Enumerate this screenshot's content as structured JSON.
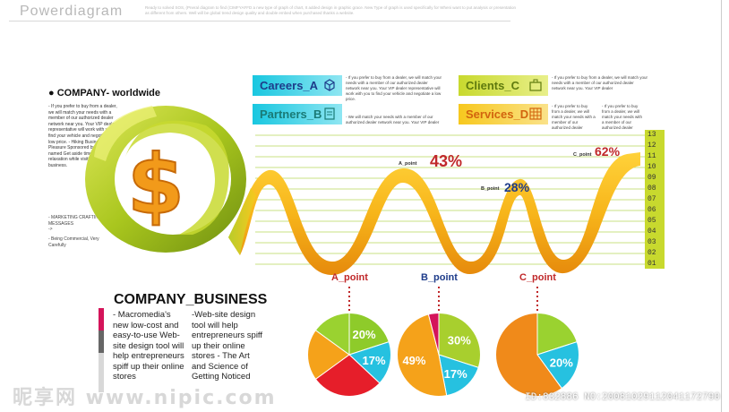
{
  "header": {
    "brand": "Powerdiagram",
    "desc": "Ready to solved SOS, (Pneral diagram to find (CIMFYAFFD a new type of graph of chart, It added design in graphic grace. New Type of graph is used specifically for Wheni want to put analysis or presentation as different from others. Well will be global trend design quality and double embed when purchased thanks a website."
  },
  "company": {
    "title": "COMPANY- worldwide",
    "text": "- If you prefer to buy from a dealer, we will match your needs with a member of our authorized dealer network near you. Your VIP dealer representative will work with you to find your vehicle and negotiate a low price. - Hiking Business With Pleasure Sponsored by Company named Get aside time for fun and relaxation while visiting Tokyo on business.",
    "tagline": "- MARKETING CRAFTING MESSAGES",
    "arrow": "->",
    "footer": "- Being Commercial, Very Carefully"
  },
  "tags": [
    {
      "label": "Careers_A",
      "icon": "cube-icon",
      "color": "#2f92d6",
      "desc": "- If you prefer to buy from a dealer, we will match your needs with a member of our authorized dealer network near you. Your VIP dealer representative will work with you to find your vehicle and negotiate a low price."
    },
    {
      "label": "Partners_B",
      "icon": "document-icon",
      "color": "#1fa6a0",
      "desc": "- We will match your needs with a member of our authorized dealer network near you. Your VIP dealer"
    },
    {
      "label": "Clients_C",
      "icon": "briefcase-icon",
      "color": "#8aa61a",
      "desc": "- If you prefer to buy from a dealer, we will match your needs with a member of our authorized dealer network near you. Your VIP dealer"
    },
    {
      "label": "Services_D",
      "icon": "grid-icon",
      "color": "#e8751a",
      "desc1": "- If you prefer to buy from a dealer, we will match your needs with a member of our authorized dealer",
      "desc2": "- If you prefer to buy from a dealer, we will match your needs with a member of our authorized dealer"
    }
  ],
  "ribbon": {
    "points": [
      {
        "label": "A_point",
        "percent": "43%",
        "color": "#c0282a"
      },
      {
        "label": "B_point",
        "percent": "28%",
        "color": "#1e3c8a"
      },
      {
        "label": "C_point",
        "percent": "62%",
        "color": "#c0282a"
      }
    ],
    "scale": [
      "13",
      "12",
      "11",
      "10",
      "09",
      "08",
      "07",
      "06",
      "05",
      "04",
      "03",
      "02",
      "01"
    ]
  },
  "pies": [
    {
      "label": "A_point",
      "label_color": "#c0282a",
      "slices": [
        {
          "value": 20,
          "color": "#8ecb2a",
          "text": "20%"
        },
        {
          "value": 17,
          "color": "#26c1e0",
          "text": "17%"
        },
        {
          "value": 28,
          "color": "#e61e2a",
          "text": ""
        },
        {
          "value": 20,
          "color": "#f5a21a",
          "text": ""
        },
        {
          "value": 15,
          "color": "#9ad230",
          "text": ""
        }
      ]
    },
    {
      "label": "B_point",
      "label_color": "#1e3c8a",
      "slices": [
        {
          "value": 30,
          "color": "#a8cf2e",
          "text": "30%"
        },
        {
          "value": 17,
          "color": "#26c1e0",
          "text": "17%"
        },
        {
          "value": 49,
          "color": "#f5a21a",
          "text": "49%"
        },
        {
          "value": 4,
          "color": "#d4145a",
          "text": ""
        }
      ]
    },
    {
      "label": "C_point",
      "label_color": "#c0282a",
      "slices": [
        {
          "value": 20,
          "color": "#9ad230",
          "text": ""
        },
        {
          "value": 20,
          "color": "#26c1e0",
          "text": "20%"
        },
        {
          "value": 60,
          "color": "#f08a1a",
          "text": ""
        }
      ]
    }
  ],
  "business": {
    "title": "COMPANY_BUSINESS",
    "col1": "- Macromedia's new low-cost and easy-to-use Web-site design tool will help entrepreneurs spiff up their online stores",
    "col2": "-Web-site design tool will help entrepreneurs spiff up their online stores - The Art and Science of Getting Noticed"
  },
  "watermark": {
    "logo": "昵享网 www.nipic.com",
    "id": "ID:832886 NO:20081029112041172790"
  }
}
